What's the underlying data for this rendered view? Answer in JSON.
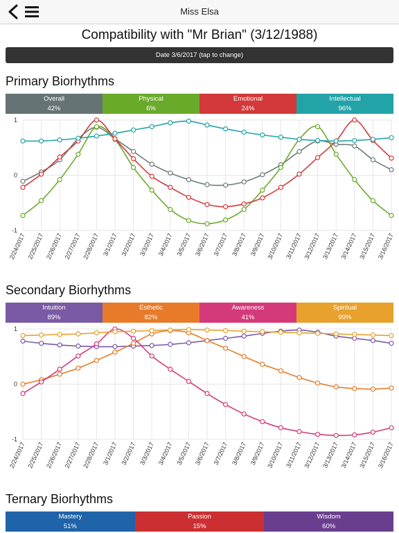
{
  "navbar": {
    "title": "Miss Elsa"
  },
  "page": {
    "title": "Compatibility with \"Mr Brian\" (3/12/1988)",
    "date_label": "Date 3/6/2017 (tap to change)"
  },
  "sections": [
    {
      "title": "Primary Biorhythms",
      "categories": [
        {
          "label": "Overall",
          "value": "42%",
          "color": "#657375"
        },
        {
          "label": "Physical",
          "value": "6%",
          "color": "#6aaa2a"
        },
        {
          "label": "Emotional",
          "value": "24%",
          "color": "#d3393a"
        },
        {
          "label": "Intellectual",
          "value": "96%",
          "color": "#22a3a8"
        }
      ]
    },
    {
      "title": "Secondary Biorhythms",
      "categories": [
        {
          "label": "Intuition",
          "value": "89%",
          "color": "#7b5aa5"
        },
        {
          "label": "Esthetic",
          "value": "82%",
          "color": "#e77b2a"
        },
        {
          "label": "Awareness",
          "value": "41%",
          "color": "#d43a7a"
        },
        {
          "label": "Spiritual",
          "value": "99%",
          "color": "#e8a12c"
        }
      ]
    },
    {
      "title": "Ternary Biorhythms",
      "categories": [
        {
          "label": "Mastery",
          "value": "51%",
          "color": "#1f63a8"
        },
        {
          "label": "Passion",
          "value": "15%",
          "color": "#cb2f32"
        },
        {
          "label": "Wisdom",
          "value": "60%",
          "color": "#6a3e8e"
        }
      ]
    }
  ],
  "chart_data": [
    {
      "type": "line",
      "x": [
        "2/24/2017",
        "2/25/2017",
        "2/26/2017",
        "2/27/2017",
        "2/28/2017",
        "3/1/2017",
        "3/2/2017",
        "3/3/2017",
        "3/4/2017",
        "3/5/2017",
        "3/6/2017",
        "3/7/2017",
        "3/8/2017",
        "3/9/2017",
        "3/10/2017",
        "3/11/2017",
        "3/12/2017",
        "3/13/2017",
        "3/14/2017",
        "3/15/2017",
        "3/16/2017"
      ],
      "ylim": [
        -1,
        1
      ],
      "yticks": [
        "1",
        "0",
        "-1"
      ],
      "grid": true,
      "series": [
        {
          "name": "Overall",
          "color": "#6f7a7b",
          "values": [
            -0.11,
            0.06,
            0.28,
            0.66,
            0.87,
            0.66,
            0.43,
            0.2,
            0.04,
            -0.08,
            -0.17,
            -0.18,
            -0.12,
            0.01,
            0.19,
            0.43,
            0.62,
            0.56,
            0.53,
            0.28,
            0.1
          ]
        },
        {
          "name": "Physical",
          "color": "#6aaa2a",
          "values": [
            -0.73,
            -0.46,
            -0.08,
            0.38,
            0.88,
            0.65,
            0.14,
            -0.27,
            -0.62,
            -0.82,
            -0.88,
            -0.81,
            -0.62,
            -0.27,
            0.14,
            0.65,
            0.88,
            0.38,
            -0.08,
            -0.46,
            -0.73
          ]
        },
        {
          "name": "Emotional",
          "color": "#d3393a",
          "values": [
            -0.22,
            0.02,
            0.33,
            0.62,
            1.0,
            0.66,
            0.3,
            -0.02,
            -0.22,
            -0.4,
            -0.53,
            -0.57,
            -0.52,
            -0.41,
            -0.22,
            0.02,
            0.32,
            0.62,
            1.0,
            0.63,
            0.31
          ]
        },
        {
          "name": "Intellectual",
          "color": "#22a3a8",
          "values": [
            0.62,
            0.62,
            0.64,
            0.67,
            0.71,
            0.76,
            0.82,
            0.88,
            0.95,
            0.98,
            0.91,
            0.84,
            0.78,
            0.73,
            0.69,
            0.65,
            0.63,
            0.62,
            0.63,
            0.65,
            0.68
          ]
        }
      ]
    },
    {
      "type": "line",
      "x": [
        "2/24/2017",
        "2/25/2017",
        "2/26/2017",
        "2/27/2017",
        "2/28/2017",
        "3/1/2017",
        "3/2/2017",
        "3/3/2017",
        "3/4/2017",
        "3/5/2017",
        "3/6/2017",
        "3/7/2017",
        "3/8/2017",
        "3/9/2017",
        "3/10/2017",
        "3/11/2017",
        "3/12/2017",
        "3/13/2017",
        "3/14/2017",
        "3/15/2017",
        "3/16/2017"
      ],
      "ylim": [
        -1,
        1
      ],
      "yticks": [
        "1",
        "0",
        "-1"
      ],
      "grid": true,
      "series": [
        {
          "name": "Intuition",
          "color": "#7b5aa5",
          "values": [
            0.78,
            0.74,
            0.71,
            0.69,
            0.68,
            0.68,
            0.69,
            0.7,
            0.72,
            0.75,
            0.79,
            0.83,
            0.87,
            0.92,
            0.96,
            0.98,
            0.94,
            0.87,
            0.83,
            0.79,
            0.74
          ]
        },
        {
          "name": "Esthetic",
          "color": "#e77b2a",
          "values": [
            0.0,
            0.08,
            0.18,
            0.29,
            0.43,
            0.58,
            0.74,
            0.91,
            0.97,
            0.93,
            0.79,
            0.65,
            0.5,
            0.36,
            0.24,
            0.12,
            0.02,
            -0.05,
            -0.08,
            -0.09,
            -0.07
          ]
        },
        {
          "name": "Awareness",
          "color": "#d43a7a",
          "values": [
            -0.17,
            0.04,
            0.27,
            0.51,
            0.73,
            1.0,
            0.83,
            0.51,
            0.27,
            0.05,
            -0.17,
            -0.37,
            -0.54,
            -0.68,
            -0.79,
            -0.86,
            -0.91,
            -0.93,
            -0.92,
            -0.87,
            -0.79
          ]
        },
        {
          "name": "Spiritual",
          "color": "#e8a12c",
          "values": [
            0.88,
            0.89,
            0.9,
            0.91,
            0.93,
            0.95,
            0.96,
            0.97,
            0.98,
            0.99,
            0.98,
            0.97,
            0.96,
            0.95,
            0.94,
            0.93,
            0.92,
            0.91,
            0.9,
            0.89,
            0.88
          ]
        }
      ]
    }
  ]
}
